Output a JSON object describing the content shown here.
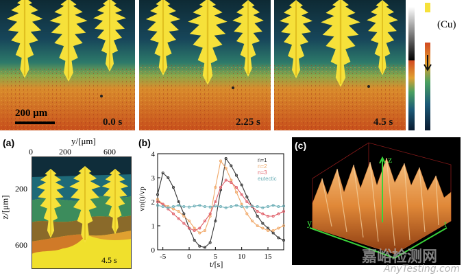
{
  "top_row": {
    "frames": [
      {
        "time_label": "0.0 s"
      },
      {
        "time_label": "2.25 s"
      },
      {
        "time_label": "4.5 s"
      }
    ],
    "scale_bar_label": "200 μm",
    "colorbar_label": "(Cu)"
  },
  "panel_a": {
    "letter": "(a)",
    "x_axis_title": "y/[μm]",
    "x_ticks": [
      "0",
      "200",
      "600"
    ],
    "y_axis_title": "z/[μm]",
    "y_ticks": [
      "200",
      "400",
      "600"
    ],
    "time_label": "4.5 s"
  },
  "panel_b": {
    "letter": "(b)",
    "x_axis_title": "t/[s]",
    "y_axis_title": "vn(t)/vp",
    "x_ticks": [
      "-5",
      "0",
      "5",
      "10",
      "15"
    ],
    "y_ticks": [
      "0",
      "1",
      "2",
      "3",
      "4"
    ],
    "legend": [
      "n=1",
      "n=2",
      "n=3",
      "eutectic"
    ]
  },
  "panel_c": {
    "letter": "(c)",
    "axis_z": "z",
    "axis_y": "y",
    "axis_t": "t"
  },
  "watermark": {
    "cn": "嘉峪检测网",
    "en": "AnyTesting.com"
  },
  "colors": {
    "dendrite": "#f6e13a",
    "n1": "#333333",
    "n2": "#f0a868",
    "n3": "#e0606a",
    "eutectic": "#6fb0b8"
  },
  "chart_data": {
    "type": "line",
    "title": "",
    "xlabel": "t/[s]",
    "ylabel": "vn(t)/vp",
    "xlim": [
      -6,
      18
    ],
    "ylim": [
      0,
      4
    ],
    "series": [
      {
        "name": "n=1",
        "x": [
          -6,
          -5,
          -4,
          -3,
          -2,
          -1,
          0,
          1,
          2,
          3,
          4,
          5,
          6,
          7,
          8,
          9,
          10,
          11,
          12,
          13,
          14,
          15,
          16,
          17,
          18
        ],
        "values": [
          2.3,
          3.2,
          3.0,
          2.6,
          2.0,
          1.5,
          0.9,
          0.4,
          0.15,
          0.1,
          0.3,
          1.2,
          2.5,
          3.8,
          3.5,
          3.1,
          2.7,
          2.2,
          1.8,
          1.4,
          1.1,
          0.9,
          0.7,
          0.5,
          0.4
        ]
      },
      {
        "name": "n=2",
        "x": [
          -6,
          -5,
          -4,
          -3,
          -2,
          -1,
          0,
          1,
          2,
          3,
          4,
          5,
          6,
          7,
          8,
          9,
          10,
          11,
          12,
          13,
          14,
          15,
          16,
          17,
          18
        ],
        "values": [
          2.1,
          1.9,
          1.8,
          1.7,
          1.6,
          1.4,
          1.2,
          0.9,
          0.7,
          0.8,
          1.4,
          2.6,
          3.7,
          3.4,
          2.9,
          2.4,
          1.9,
          1.5,
          1.2,
          1.0,
          0.9,
          0.8,
          0.8,
          0.9,
          1.0
        ]
      },
      {
        "name": "n=3",
        "x": [
          -6,
          -5,
          -4,
          -3,
          -2,
          -1,
          0,
          1,
          2,
          3,
          4,
          5,
          6,
          7,
          8,
          9,
          10,
          11,
          12,
          13,
          14,
          15,
          16,
          17,
          18
        ],
        "values": [
          2.0,
          1.9,
          1.7,
          1.5,
          1.3,
          1.1,
          0.9,
          0.8,
          0.9,
          1.2,
          1.5,
          2.0,
          2.6,
          2.9,
          2.8,
          2.6,
          2.3,
          2.0,
          1.8,
          1.6,
          1.5,
          1.4,
          1.4,
          1.5,
          1.6
        ]
      },
      {
        "name": "eutectic",
        "x": [
          -6,
          -5,
          -4,
          -3,
          -2,
          -1,
          0,
          1,
          2,
          3,
          4,
          5,
          6,
          7,
          8,
          9,
          10,
          11,
          12,
          13,
          14,
          15,
          16,
          17,
          18
        ],
        "values": [
          1.85,
          1.8,
          1.75,
          1.8,
          1.85,
          1.8,
          1.78,
          1.82,
          1.85,
          1.8,
          1.78,
          1.82,
          1.8,
          1.75,
          1.8,
          1.85,
          1.8,
          1.78,
          1.82,
          1.8,
          1.75,
          1.8,
          1.85,
          1.8,
          1.82
        ]
      }
    ]
  }
}
